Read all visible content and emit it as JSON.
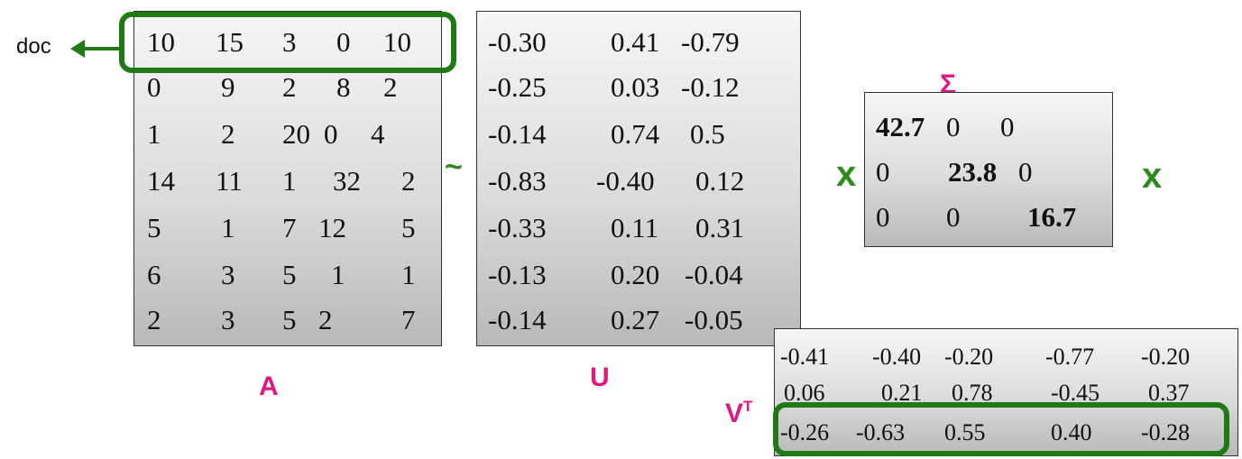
{
  "doc_label": "doc",
  "matrix_a": {
    "label": "A",
    "rows": [
      [
        "10",
        "15",
        "3",
        "0",
        "10"
      ],
      [
        "0",
        "9",
        "2",
        "8",
        "2"
      ],
      [
        "1",
        "2",
        "20",
        "0",
        "4"
      ],
      [
        "14",
        "11",
        "1",
        "32",
        "2"
      ],
      [
        "5",
        "1",
        "7",
        "12",
        "5"
      ],
      [
        "6",
        "3",
        "5",
        "1",
        "1"
      ],
      [
        "2",
        "3",
        "5",
        "2",
        "7"
      ]
    ]
  },
  "approx_symbol": "~",
  "matrix_u": {
    "label": "U",
    "rows": [
      [
        "-0.30",
        "0.41",
        "-0.79"
      ],
      [
        "-0.25",
        "0.03",
        "-0.12"
      ],
      [
        "-0.14",
        "0.74",
        "0.5"
      ],
      [
        "-0.83",
        "-0.40",
        "0.12"
      ],
      [
        "-0.33",
        "0.11",
        "0.31"
      ],
      [
        "-0.13",
        "0.20",
        "-0.04"
      ],
      [
        "-0.14",
        "0.27",
        "-0.05"
      ]
    ]
  },
  "times_symbol": "x",
  "matrix_sigma": {
    "label": "Σ",
    "rows": [
      [
        "42.7",
        "0",
        "0"
      ],
      [
        "0",
        "23.8",
        "0"
      ],
      [
        "0",
        "0",
        "16.7"
      ]
    ]
  },
  "matrix_vt": {
    "label_base": "V",
    "label_sup": "T",
    "rows": [
      [
        "-0.41",
        "-0.40",
        "-0.20",
        "-0.77",
        "-0.20"
      ],
      [
        "0.06",
        "0.21",
        "0.78",
        "-0.45",
        "0.37"
      ],
      [
        "-0.26",
        "-0.63",
        "0.55",
        "0.40",
        "-0.28"
      ]
    ]
  },
  "colors": {
    "highlight": "#1f7a16",
    "operator": "#2e8b1e",
    "label": "#e0197f"
  }
}
